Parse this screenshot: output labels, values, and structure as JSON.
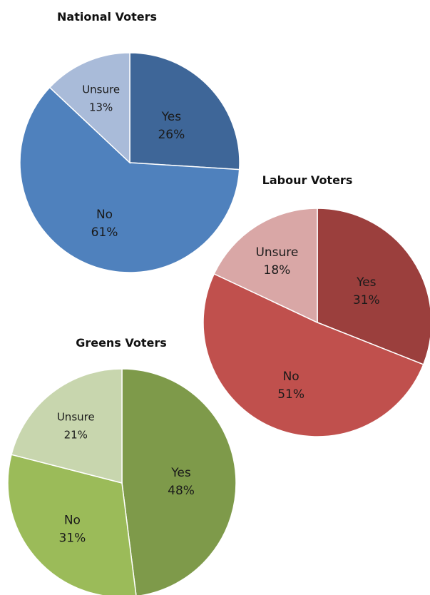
{
  "chart_data": [
    {
      "type": "pie",
      "title": "National Voters",
      "categories": [
        "Yes",
        "No",
        "Unsure"
      ],
      "values": [
        26,
        61,
        13
      ],
      "value_labels": [
        "26%",
        "61%",
        "13%"
      ],
      "colors": [
        "#3E6698",
        "#4F81BD",
        "#A9BBD9"
      ]
    },
    {
      "type": "pie",
      "title": "Labour Voters",
      "categories": [
        "Yes",
        "No",
        "Unsure"
      ],
      "values": [
        31,
        51,
        18
      ],
      "value_labels": [
        "31%",
        "51%",
        "18%"
      ],
      "colors": [
        "#9B3F3D",
        "#C0504D",
        "#D9A7A6"
      ]
    },
    {
      "type": "pie",
      "title": "Greens Voters",
      "categories": [
        "Yes",
        "No",
        "Unsure"
      ],
      "values": [
        48,
        31,
        21
      ],
      "value_labels": [
        "48%",
        "31%",
        "21%"
      ],
      "colors": [
        "#7E9A4A",
        "#9BBB59",
        "#C8D6AE"
      ]
    }
  ]
}
